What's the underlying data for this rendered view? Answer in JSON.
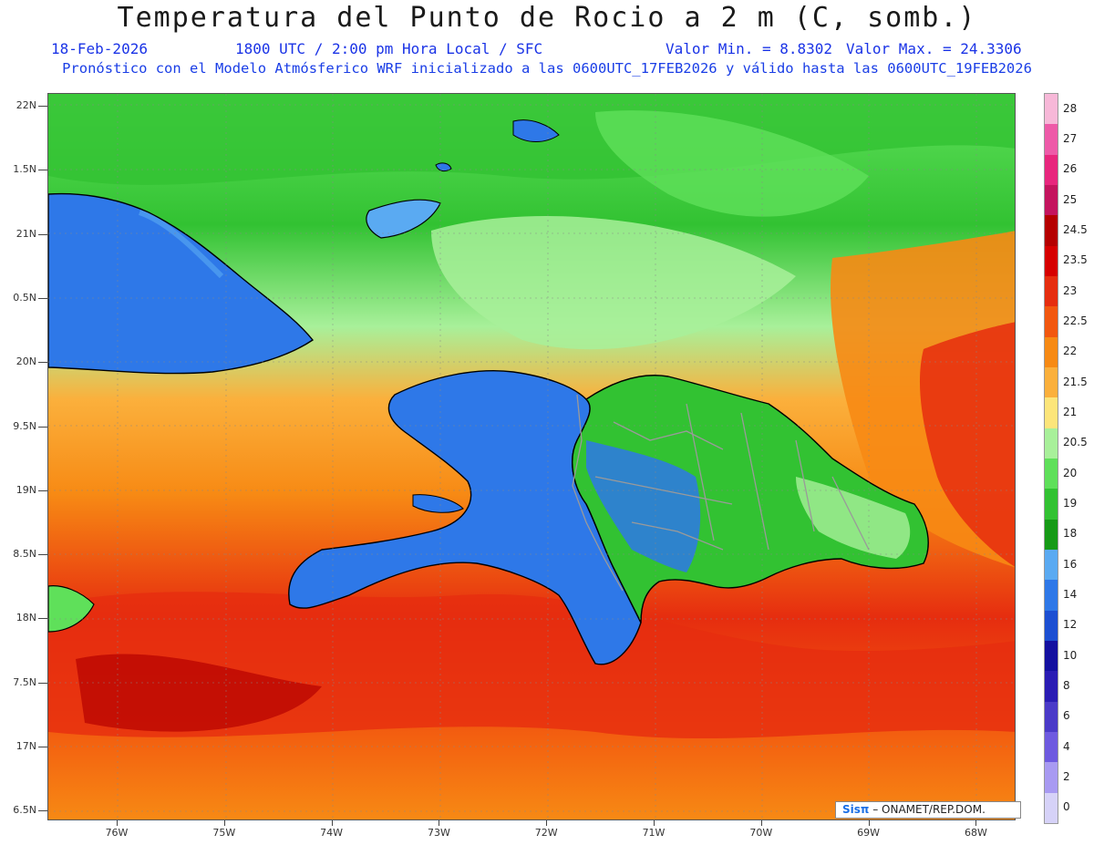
{
  "title": "Temperatura del Punto de Rocio a 2 m (C, somb.)",
  "subtitle": {
    "date": "18-Feb-2026",
    "time": "1800 UTC / 2:00 pm Hora Local / SFC",
    "min": "Valor Min. = 8.8302",
    "max": "Valor Max. = 24.3306",
    "run_info": "Pronóstico con el Modelo Atmósferico WRF inicializado a las 0600UTC_17FEB2026 y válido hasta las  0600UTC_19FEB2026"
  },
  "lat_labels": [
    "22N",
    "1.5N",
    "21N",
    "0.5N",
    "20N",
    "9.5N",
    "19N",
    "8.5N",
    "18N",
    "7.5N",
    "17N",
    "6.5N"
  ],
  "lon_labels": [
    "76W",
    "75W",
    "74W",
    "73W",
    "72W",
    "71W",
    "70W",
    "69W",
    "68W"
  ],
  "colorbar": {
    "labels": [
      "28",
      "27",
      "26",
      "25",
      "24.5",
      "23.5",
      "23",
      "22.5",
      "22",
      "21.5",
      "21",
      "20.5",
      "20",
      "19",
      "18",
      "16",
      "14",
      "12",
      "10",
      "8",
      "6",
      "4",
      "2",
      "0"
    ],
    "colors": [
      "#f7b8d8",
      "#ee5aa8",
      "#e8267d",
      "#c4145e",
      "#b50000",
      "#d60000",
      "#e62d0f",
      "#f2570f",
      "#f78a14",
      "#fbb03c",
      "#fce57a",
      "#a8f09a",
      "#5fe05a",
      "#32c232",
      "#169a16",
      "#5aaaf2",
      "#2e78e8",
      "#1c4fd2",
      "#1410a0",
      "#2a1cb4",
      "#4a3ac8",
      "#6e5ae0",
      "#a89af2",
      "#d6d2f8"
    ]
  },
  "credit": {
    "logo": "Sisπ",
    "text": " – ONAMET/REP.DOM."
  },
  "map_colors": {
    "ocean_warm": "#f78a14",
    "ocean_hot": "#e62d0f",
    "ocean_north": "#5fe05a",
    "land_low": "#2e78e8",
    "land_mid": "#5aaaf2",
    "land_deep": "#1c3fc8",
    "land_green": "#32c232",
    "coast": "#000000",
    "border": "#9a9a9a"
  }
}
